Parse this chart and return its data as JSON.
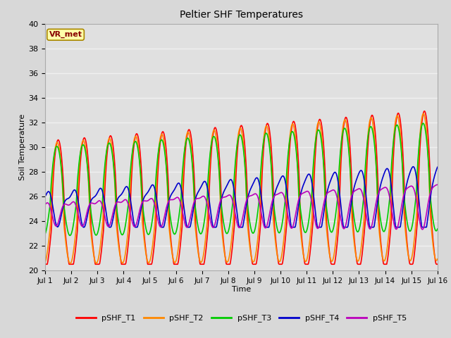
{
  "title": "Peltier SHF Temperatures",
  "xlabel": "Time",
  "ylabel": "Soil Temperature",
  "ylim": [
    20,
    40
  ],
  "xlim_days": 15,
  "background_color": "#d8d8d8",
  "plot_bg_color": "#e0e0e0",
  "grid_color": "#f0f0f0",
  "annotation_text": "VR_met",
  "annotation_bg": "#ffffaa",
  "annotation_border": "#aa8800",
  "annotation_text_color": "#880000",
  "T1_color": "#ff0000",
  "T2_color": "#ff8800",
  "T3_color": "#00cc00",
  "T4_color": "#0000cc",
  "T5_color": "#bb00bb",
  "lw": 1.2,
  "legend_labels": [
    "pSHF_T1",
    "pSHF_T2",
    "pSHF_T3",
    "pSHF_T4",
    "pSHF_T5"
  ],
  "legend_colors": [
    "#ff0000",
    "#ff8800",
    "#00cc00",
    "#0000cc",
    "#bb00bb"
  ],
  "xtick_labels": [
    "Jul 1",
    "Jul 2",
    "Jul 3",
    "Jul 4",
    "Jul 5",
    "Jul 6",
    "Jul 7",
    "Jul 8",
    "Jul 9",
    "Jul 10",
    "Jul 11",
    "Jul 12",
    "Jul 13",
    "Jul 14",
    "Jul 15",
    "Jul 16"
  ]
}
